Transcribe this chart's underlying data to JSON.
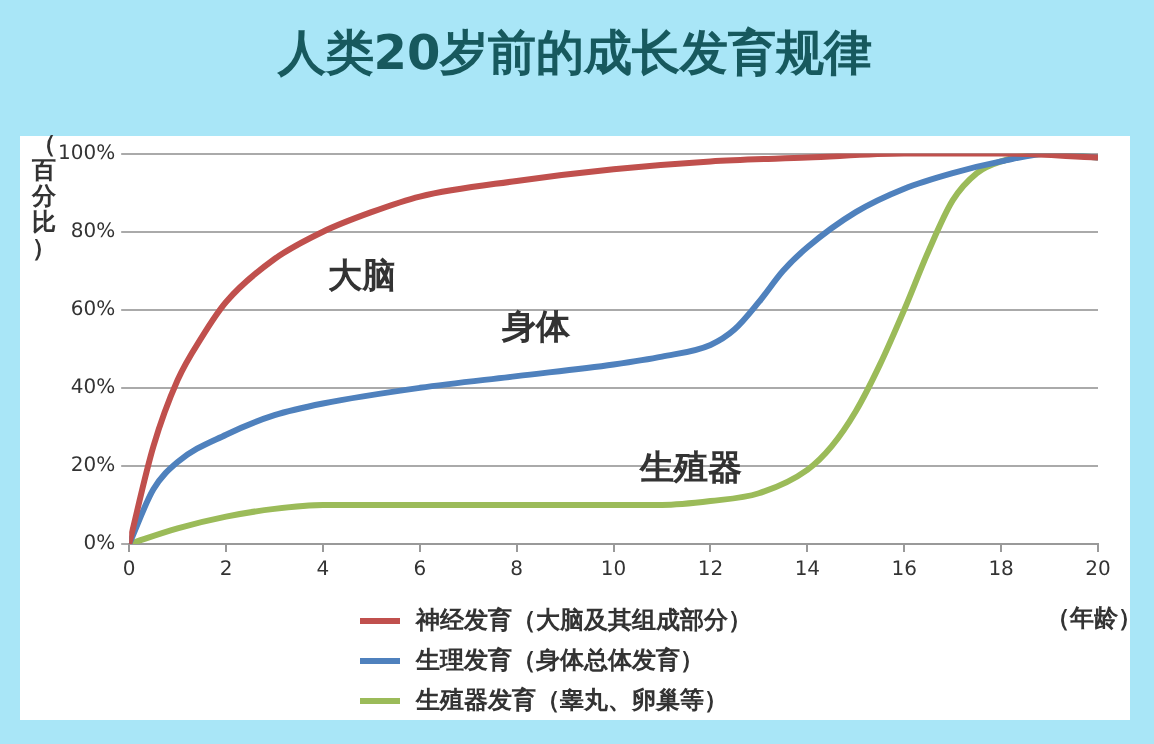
{
  "chart_data": {
    "type": "line",
    "title": "人类20岁前的成长发育规律",
    "xlabel": "（年龄）",
    "ylabel": "（百分比）",
    "xlim": [
      0,
      20
    ],
    "xticks": [
      0,
      2,
      4,
      6,
      8,
      10,
      12,
      14,
      16,
      18,
      20
    ],
    "ylim": [
      0,
      100
    ],
    "yticks": [
      {
        "value": 0,
        "label": "0%"
      },
      {
        "value": 20,
        "label": "20%"
      },
      {
        "value": 40,
        "label": "40%"
      },
      {
        "value": 60,
        "label": "60%"
      },
      {
        "value": 80,
        "label": "80%"
      },
      {
        "value": 100,
        "label": "100%"
      }
    ],
    "grid": "y",
    "legend": "bottom",
    "marker": "none",
    "line_style": "solid",
    "annotations": [
      "大脑",
      "身体",
      "生殖器"
    ],
    "series": [
      {
        "name": "神经发育（大脑及其组成部分）",
        "color": "#c0504d",
        "x": [
          0,
          0.5,
          1,
          1.5,
          2,
          3,
          4,
          5,
          6,
          8,
          10,
          12,
          14,
          16,
          18,
          20
        ],
        "values": [
          0,
          25,
          42,
          53,
          62,
          73,
          80,
          85,
          89,
          93,
          96,
          98,
          99,
          100,
          100,
          99
        ]
      },
      {
        "name": "生理发育（身体总体发育）",
        "color": "#4f81bd",
        "x": [
          0,
          0.5,
          1,
          2,
          3,
          4,
          6,
          8,
          10,
          11,
          12,
          12.5,
          13,
          13.5,
          14,
          15,
          16,
          17,
          18,
          19,
          20
        ],
        "values": [
          0,
          14,
          21,
          28,
          33,
          36,
          40,
          43,
          46,
          48,
          51,
          55,
          62,
          70,
          76,
          85,
          91,
          95,
          98,
          100,
          99
        ]
      },
      {
        "name": "生殖器发育（睾丸、卵巢等）",
        "color": "#9bbb59",
        "x": [
          0,
          1,
          2,
          3,
          4,
          6,
          8,
          10,
          11,
          12,
          13,
          14,
          14.5,
          15,
          15.5,
          16,
          16.5,
          17,
          17.5,
          18,
          19,
          20
        ],
        "values": [
          0,
          4,
          7,
          9,
          10,
          10,
          10,
          10,
          10,
          11,
          13,
          19,
          25,
          34,
          46,
          60,
          75,
          88,
          95,
          98,
          100,
          99
        ]
      }
    ]
  }
}
